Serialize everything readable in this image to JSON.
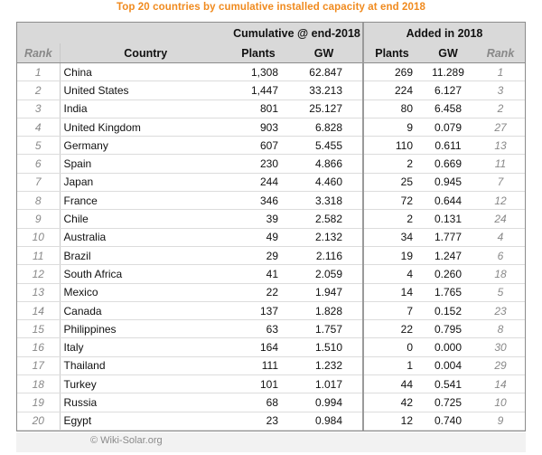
{
  "title": "Top 20 countries by cumulative installed capacity at end 2018",
  "headers": {
    "group_cumulative": "Cumulative @ end-2018",
    "group_added": "Added in 2018",
    "rank": "Rank",
    "country": "Country",
    "plants": "Plants",
    "gw": "GW",
    "plants_added": "Plants",
    "gw_added": "GW",
    "rank_added": "Rank"
  },
  "rows": [
    {
      "rank": "1",
      "country": "China",
      "plants": "1,308",
      "gw": "62.847",
      "plants_added": "269",
      "gw_added": "11.289",
      "rank_added": "1"
    },
    {
      "rank": "2",
      "country": "United States",
      "plants": "1,447",
      "gw": "33.213",
      "plants_added": "224",
      "gw_added": "6.127",
      "rank_added": "3"
    },
    {
      "rank": "3",
      "country": "India",
      "plants": "801",
      "gw": "25.127",
      "plants_added": "80",
      "gw_added": "6.458",
      "rank_added": "2"
    },
    {
      "rank": "4",
      "country": "United Kingdom",
      "plants": "903",
      "gw": "6.828",
      "plants_added": "9",
      "gw_added": "0.079",
      "rank_added": "27"
    },
    {
      "rank": "5",
      "country": "Germany",
      "plants": "607",
      "gw": "5.455",
      "plants_added": "110",
      "gw_added": "0.611",
      "rank_added": "13"
    },
    {
      "rank": "6",
      "country": "Spain",
      "plants": "230",
      "gw": "4.866",
      "plants_added": "2",
      "gw_added": "0.669",
      "rank_added": "11"
    },
    {
      "rank": "7",
      "country": "Japan",
      "plants": "244",
      "gw": "4.460",
      "plants_added": "25",
      "gw_added": "0.945",
      "rank_added": "7"
    },
    {
      "rank": "8",
      "country": "France",
      "plants": "346",
      "gw": "3.318",
      "plants_added": "72",
      "gw_added": "0.644",
      "rank_added": "12"
    },
    {
      "rank": "9",
      "country": "Chile",
      "plants": "39",
      "gw": "2.582",
      "plants_added": "2",
      "gw_added": "0.131",
      "rank_added": "24"
    },
    {
      "rank": "10",
      "country": "Australia",
      "plants": "49",
      "gw": "2.132",
      "plants_added": "34",
      "gw_added": "1.777",
      "rank_added": "4"
    },
    {
      "rank": "11",
      "country": "Brazil",
      "plants": "29",
      "gw": "2.116",
      "plants_added": "19",
      "gw_added": "1.247",
      "rank_added": "6"
    },
    {
      "rank": "12",
      "country": "South Africa",
      "plants": "41",
      "gw": "2.059",
      "plants_added": "4",
      "gw_added": "0.260",
      "rank_added": "18"
    },
    {
      "rank": "13",
      "country": "Mexico",
      "plants": "22",
      "gw": "1.947",
      "plants_added": "14",
      "gw_added": "1.765",
      "rank_added": "5"
    },
    {
      "rank": "14",
      "country": "Canada",
      "plants": "137",
      "gw": "1.828",
      "plants_added": "7",
      "gw_added": "0.152",
      "rank_added": "23"
    },
    {
      "rank": "15",
      "country": "Philippines",
      "plants": "63",
      "gw": "1.757",
      "plants_added": "22",
      "gw_added": "0.795",
      "rank_added": "8"
    },
    {
      "rank": "16",
      "country": "Italy",
      "plants": "164",
      "gw": "1.510",
      "plants_added": "0",
      "gw_added": "0.000",
      "rank_added": "30"
    },
    {
      "rank": "17",
      "country": "Thailand",
      "plants": "111",
      "gw": "1.232",
      "plants_added": "1",
      "gw_added": "0.004",
      "rank_added": "29"
    },
    {
      "rank": "18",
      "country": "Turkey",
      "plants": "101",
      "gw": "1.017",
      "plants_added": "44",
      "gw_added": "0.541",
      "rank_added": "14"
    },
    {
      "rank": "19",
      "country": "Russia",
      "plants": "68",
      "gw": "0.994",
      "plants_added": "42",
      "gw_added": "0.725",
      "rank_added": "10"
    },
    {
      "rank": "20",
      "country": "Egypt",
      "plants": "23",
      "gw": "0.984",
      "plants_added": "12",
      "gw_added": "0.740",
      "rank_added": "9"
    }
  ],
  "footer": "© Wiki-Solar.org",
  "colors": {
    "title": "#f08a1e",
    "header_bg": "#d9d9d9",
    "rank_text": "#888888"
  }
}
